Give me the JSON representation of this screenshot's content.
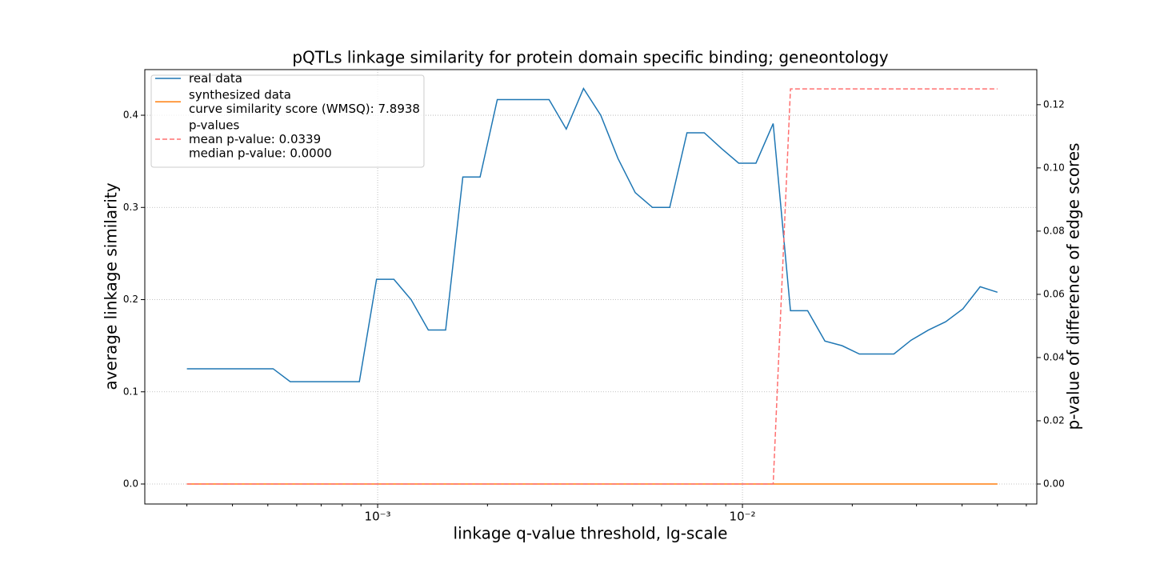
{
  "chart_data": {
    "type": "line",
    "title": "pQTLs linkage similarity for protein domain specific binding; geneontology",
    "x_label": "linkage q-value threshold, lg-scale",
    "y_label": "average linkage similarity",
    "y2_label": "p-value of difference of edge scores",
    "xscale": "log",
    "grid": true,
    "legend": "upper left",
    "xlim": [
      0.00023,
      0.0641
    ],
    "ylim": [
      -0.0217,
      0.4495
    ],
    "y2lim": [
      -0.00633,
      0.1311
    ],
    "xticks": [
      {
        "value": 0.001,
        "label": "10⁻³"
      },
      {
        "value": 0.01,
        "label": "10⁻²"
      }
    ],
    "xminorticks": [
      0.0003,
      0.0004,
      0.0005,
      0.0006,
      0.0007,
      0.0008,
      0.0009,
      0.002,
      0.003,
      0.004,
      0.005,
      0.006,
      0.007,
      0.008,
      0.009,
      0.02,
      0.03,
      0.04,
      0.05,
      0.06
    ],
    "yticks": [
      {
        "value": 0,
        "label": "0.0"
      },
      0.1,
      0.2,
      0.3,
      0.4
    ],
    "y2ticks": [
      {
        "value": 0,
        "label": "0.00"
      },
      {
        "value": 0.02,
        "label": "0.02"
      },
      {
        "value": 0.04,
        "label": "0.04"
      },
      {
        "value": 0.06,
        "label": "0.06"
      },
      {
        "value": 0.08,
        "label": "0.08"
      },
      {
        "value": 0.1,
        "label": "0.10"
      },
      {
        "value": 0.12,
        "label": "0.12"
      }
    ],
    "x": [
      0.0003,
      0.0003345,
      0.000373,
      0.000416,
      0.000464,
      0.000517,
      0.000576,
      0.000643,
      0.000717,
      0.000799,
      0.000891,
      0.000993,
      0.001108,
      0.001235,
      0.001377,
      0.001536,
      0.001712,
      0.001909,
      0.002128,
      0.002373,
      0.002646,
      0.00295,
      0.003289,
      0.003667,
      0.004089,
      0.004559,
      0.005083,
      0.005667,
      0.006319,
      0.007046,
      0.007856,
      0.008759,
      0.009767,
      0.01089,
      0.01214,
      0.01354,
      0.01509,
      0.01683,
      0.01876,
      0.02092,
      0.02333,
      0.02601,
      0.029,
      0.03234,
      0.03606,
      0.0402,
      0.04483,
      0.05
    ],
    "series": [
      {
        "name": "real data",
        "color": "#1f77b4",
        "dash": false,
        "axis": "y",
        "values": [
          0.125,
          0.125,
          0.125,
          0.125,
          0.125,
          0.125,
          0.111,
          0.111,
          0.111,
          0.111,
          0.111,
          0.222,
          0.222,
          0.2,
          0.167,
          0.167,
          0.333,
          0.333,
          0.417,
          0.417,
          0.417,
          0.417,
          0.385,
          0.429,
          0.4,
          0.353,
          0.316,
          0.3,
          0.3,
          0.381,
          0.381,
          0.364,
          0.348,
          0.348,
          0.391,
          0.188,
          0.188,
          0.155,
          0.15,
          0.141,
          0.141,
          0.141,
          0.156,
          0.167,
          0.176,
          0.19,
          0.214,
          0.208
        ]
      },
      {
        "name": "synthesized data\ncurve similarity score (WMSQ): 7.8938",
        "color": "#ff7f0e",
        "dash": false,
        "axis": "y",
        "values": [
          0,
          0,
          0,
          0,
          0,
          0,
          0,
          0,
          0,
          0,
          0,
          0,
          0,
          0,
          0,
          0,
          0,
          0,
          0,
          0,
          0,
          0,
          0,
          0,
          0,
          0,
          0,
          0,
          0,
          0,
          0,
          0,
          0,
          0,
          0,
          0,
          0,
          0,
          0,
          0,
          0,
          0,
          0,
          0,
          0,
          0,
          0,
          0
        ]
      },
      {
        "name": "p-values\nmean p-value: 0.0339\nmedian p-value: 0.0000",
        "color": "#ff7070",
        "dash": true,
        "axis": "y2",
        "values": [
          0,
          0,
          0,
          0,
          0,
          0,
          0,
          0,
          0,
          0,
          0,
          0,
          0,
          0,
          0,
          0,
          0,
          0,
          0,
          0,
          0,
          0,
          0,
          0,
          0,
          0,
          0,
          0,
          0,
          0,
          0,
          0,
          0,
          0,
          0,
          0.125,
          0.125,
          0.125,
          0.125,
          0.125,
          0.125,
          0.125,
          0.125,
          0.125,
          0.125,
          0.125,
          0.125,
          0.125
        ]
      }
    ]
  }
}
